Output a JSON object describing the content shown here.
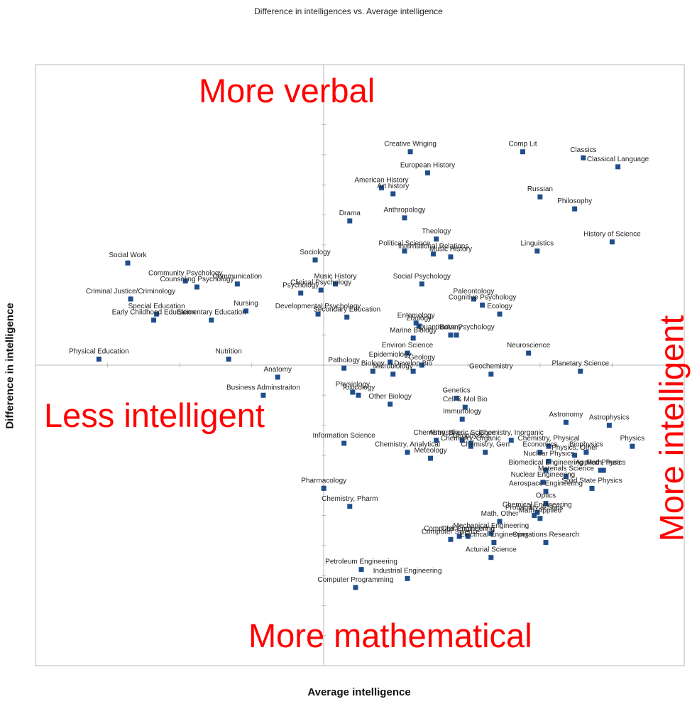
{
  "chart_data": {
    "type": "scatter",
    "title": "Difference in intelligences vs. Average intelligence",
    "xlabel": "Average intelligence",
    "ylabel": "Difference in intelligence",
    "xlim": [
      -1,
      1.25
    ],
    "ylim": [
      -1,
      1
    ],
    "grid": false,
    "annotations": [
      "More verbal",
      "More mathematical",
      "Less intelligent",
      "More intelligent"
    ],
    "points": [
      {
        "label": "Creative Wriging",
        "x": 0.3,
        "y": 0.71
      },
      {
        "label": "Comp Lit",
        "x": 0.69,
        "y": 0.71
      },
      {
        "label": "Classics",
        "x": 0.9,
        "y": 0.69
      },
      {
        "label": "Classical Language",
        "x": 1.02,
        "y": 0.66
      },
      {
        "label": "European History",
        "x": 0.36,
        "y": 0.64
      },
      {
        "label": "American History",
        "x": 0.2,
        "y": 0.59
      },
      {
        "label": "Art history",
        "x": 0.24,
        "y": 0.57
      },
      {
        "label": "Russian",
        "x": 0.75,
        "y": 0.56
      },
      {
        "label": "Philosophy",
        "x": 0.87,
        "y": 0.52
      },
      {
        "label": "Drama",
        "x": 0.09,
        "y": 0.48
      },
      {
        "label": "Anthropology",
        "x": 0.28,
        "y": 0.49
      },
      {
        "label": "Theology",
        "x": 0.39,
        "y": 0.42
      },
      {
        "label": "Political Science",
        "x": 0.28,
        "y": 0.38
      },
      {
        "label": "International Relations",
        "x": 0.38,
        "y": 0.37
      },
      {
        "label": "Music History",
        "x": 0.44,
        "y": 0.36
      },
      {
        "label": "History of Science",
        "x": 1.0,
        "y": 0.41
      },
      {
        "label": "Linguistics",
        "x": 0.74,
        "y": 0.38
      },
      {
        "label": "Social Work",
        "x": -0.68,
        "y": 0.34
      },
      {
        "label": "Sociology",
        "x": -0.03,
        "y": 0.35
      },
      {
        "label": "Community Psychology",
        "x": -0.48,
        "y": 0.28
      },
      {
        "label": "Counseling Psychology",
        "x": -0.44,
        "y": 0.26
      },
      {
        "label": "Communication",
        "x": -0.3,
        "y": 0.27
      },
      {
        "label": "Music History",
        "x": 0.04,
        "y": 0.27
      },
      {
        "label": "Clinical Psychology",
        "x": -0.01,
        "y": 0.25
      },
      {
        "label": "Psychology",
        "x": -0.08,
        "y": 0.24
      },
      {
        "label": "Social Psychology",
        "x": 0.34,
        "y": 0.27
      },
      {
        "label": "Criminal Justice/Criminology",
        "x": -0.67,
        "y": 0.22
      },
      {
        "label": "Special Education",
        "x": -0.58,
        "y": 0.17
      },
      {
        "label": "Early Childhood Education",
        "x": -0.59,
        "y": 0.15
      },
      {
        "label": "Elementary Education",
        "x": -0.39,
        "y": 0.15
      },
      {
        "label": "Nursing",
        "x": -0.27,
        "y": 0.18
      },
      {
        "label": "Developmental Psychology",
        "x": -0.02,
        "y": 0.17
      },
      {
        "label": "Secondary Education",
        "x": 0.08,
        "y": 0.16
      },
      {
        "label": "Paleontology",
        "x": 0.52,
        "y": 0.22
      },
      {
        "label": "Cognitive Psychology",
        "x": 0.55,
        "y": 0.2
      },
      {
        "label": "Ecology",
        "x": 0.61,
        "y": 0.17
      },
      {
        "label": "Entomology",
        "x": 0.32,
        "y": 0.14
      },
      {
        "label": "Zoology",
        "x": 0.33,
        "y": 0.13
      },
      {
        "label": "Quantitative Psychology",
        "x": 0.46,
        "y": 0.1
      },
      {
        "label": "Botany",
        "x": 0.44,
        "y": 0.1
      },
      {
        "label": "Marine Biology",
        "x": 0.31,
        "y": 0.09
      },
      {
        "label": "Neuroscience",
        "x": 0.71,
        "y": 0.04
      },
      {
        "label": "Physical Education",
        "x": -0.78,
        "y": 0.02
      },
      {
        "label": "Nutrition",
        "x": -0.33,
        "y": 0.02
      },
      {
        "label": "Environ Science",
        "x": 0.29,
        "y": 0.04
      },
      {
        "label": "Epidemiology",
        "x": 0.23,
        "y": 0.01
      },
      {
        "label": "Geology",
        "x": 0.34,
        "y": 0.0
      },
      {
        "label": "Biology",
        "x": 0.17,
        "y": -0.02
      },
      {
        "label": "Microbiology",
        "x": 0.24,
        "y": -0.03
      },
      {
        "label": "Develop Bio",
        "x": 0.31,
        "y": -0.02
      },
      {
        "label": "Pathology",
        "x": 0.07,
        "y": -0.01
      },
      {
        "label": "Geochemistry",
        "x": 0.58,
        "y": -0.03
      },
      {
        "label": "Planetary Science",
        "x": 0.89,
        "y": -0.02
      },
      {
        "label": "Anatomy",
        "x": -0.16,
        "y": -0.04
      },
      {
        "label": "Business Adminstraiton",
        "x": -0.21,
        "y": -0.1
      },
      {
        "label": "Physiology",
        "x": 0.1,
        "y": -0.09
      },
      {
        "label": "Toxicology",
        "x": 0.12,
        "y": -0.1
      },
      {
        "label": "Other Biology",
        "x": 0.23,
        "y": -0.13
      },
      {
        "label": "Genetics",
        "x": 0.46,
        "y": -0.11
      },
      {
        "label": "Cell & Mol Bio",
        "x": 0.49,
        "y": -0.14
      },
      {
        "label": "Immunology",
        "x": 0.48,
        "y": -0.18
      },
      {
        "label": "Astronomy",
        "x": 0.84,
        "y": -0.19
      },
      {
        "label": "Astrophysics",
        "x": 0.99,
        "y": -0.2
      },
      {
        "label": "Information Science",
        "x": 0.07,
        "y": -0.26
      },
      {
        "label": "Chemistry, Bio",
        "x": 0.39,
        "y": -0.25
      },
      {
        "label": "Atmospheric Science",
        "x": 0.48,
        "y": -0.25
      },
      {
        "label": "Chemistry, Inorganic",
        "x": 0.65,
        "y": -0.25
      },
      {
        "label": "Geophysics",
        "x": 0.51,
        "y": -0.26
      },
      {
        "label": "Chemistry, Physical",
        "x": 0.78,
        "y": -0.27
      },
      {
        "label": "Physics",
        "x": 1.07,
        "y": -0.27
      },
      {
        "label": "Chemistry, Analytical",
        "x": 0.29,
        "y": -0.29
      },
      {
        "label": "Chemistry, Organic",
        "x": 0.51,
        "y": -0.27
      },
      {
        "label": "Meteology",
        "x": 0.37,
        "y": -0.31
      },
      {
        "label": "Chemistry, Gen",
        "x": 0.56,
        "y": -0.29
      },
      {
        "label": "Economics",
        "x": 0.75,
        "y": -0.29
      },
      {
        "label": "Physics, Other",
        "x": 0.87,
        "y": -0.3
      },
      {
        "label": "Biophysics",
        "x": 0.91,
        "y": -0.29
      },
      {
        "label": "Nuclear Physics",
        "x": 0.78,
        "y": -0.32
      },
      {
        "label": "Biomedical Engineering",
        "x": 0.77,
        "y": -0.35
      },
      {
        "label": "Applied Physics",
        "x": 0.96,
        "y": -0.35
      },
      {
        "label": "Math, Pure",
        "x": 0.97,
        "y": -0.35
      },
      {
        "label": "Materials Science",
        "x": 0.84,
        "y": -0.37
      },
      {
        "label": "Nuclear Engineering",
        "x": 0.76,
        "y": -0.39
      },
      {
        "label": "Solid State Physics",
        "x": 0.93,
        "y": -0.41
      },
      {
        "label": "Aerospace Engineering",
        "x": 0.77,
        "y": -0.42
      },
      {
        "label": "Pharmacology",
        "x": 0.0,
        "y": -0.41
      },
      {
        "label": "Chemistry, Pharm",
        "x": 0.09,
        "y": -0.47
      },
      {
        "label": "Optics",
        "x": 0.77,
        "y": -0.46
      },
      {
        "label": "Chemical Engineering",
        "x": 0.74,
        "y": -0.49
      },
      {
        "label": "Probability & Stats",
        "x": 0.73,
        "y": -0.5
      },
      {
        "label": "Math, Applied",
        "x": 0.75,
        "y": -0.51
      },
      {
        "label": "Math, Other",
        "x": 0.61,
        "y": -0.52
      },
      {
        "label": "Mechanical Engineering",
        "x": 0.58,
        "y": -0.56
      },
      {
        "label": "Civil Engineering",
        "x": 0.5,
        "y": -0.57
      },
      {
        "label": "Computer Science",
        "x": 0.44,
        "y": -0.58
      },
      {
        "label": "Computer Engineering",
        "x": 0.47,
        "y": -0.57
      },
      {
        "label": "Electrical Engineering",
        "x": 0.59,
        "y": -0.59
      },
      {
        "label": "Operations Research",
        "x": 0.77,
        "y": -0.59
      },
      {
        "label": "Acturial Science",
        "x": 0.58,
        "y": -0.64
      },
      {
        "label": "Petroleum Engineering",
        "x": 0.13,
        "y": -0.68
      },
      {
        "label": "Industrial Engineering",
        "x": 0.29,
        "y": -0.71
      },
      {
        "label": "Computer Programming",
        "x": 0.11,
        "y": -0.74
      }
    ]
  }
}
